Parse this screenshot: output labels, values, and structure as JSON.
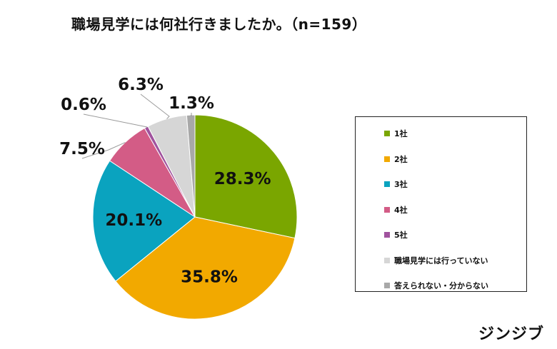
{
  "title": "職場見学には何社行きましたか。（n=159）",
  "brand": "ジンジブ",
  "chart_data": {
    "type": "pie",
    "title": "職場見学には何社行きましたか。（n=159）",
    "start_angle_deg": 0,
    "direction": "clockwise",
    "legend_position": "right",
    "slices": [
      {
        "label": "1社",
        "value": 28.3,
        "display": "28.3%",
        "color": "#7aa600",
        "label_inside": true
      },
      {
        "label": "2社",
        "value": 35.8,
        "display": "35.8%",
        "color": "#f2a900",
        "label_inside": true
      },
      {
        "label": "3社",
        "value": 20.1,
        "display": "20.1%",
        "color": "#0aa3bf",
        "label_inside": true
      },
      {
        "label": "4社",
        "value": 7.5,
        "display": "7.5%",
        "color": "#d35c86",
        "label_inside": false
      },
      {
        "label": "5社",
        "value": 0.6,
        "display": "0.6%",
        "color": "#a0539e",
        "label_inside": false
      },
      {
        "label": "職場見学には行っていない",
        "value": 6.3,
        "display": "6.3%",
        "color": "#d6d6d6",
        "label_inside": false
      },
      {
        "label": "答えられない・分からない",
        "value": 1.3,
        "display": "1.3%",
        "color": "#a8a8a8",
        "label_inside": false
      }
    ]
  }
}
